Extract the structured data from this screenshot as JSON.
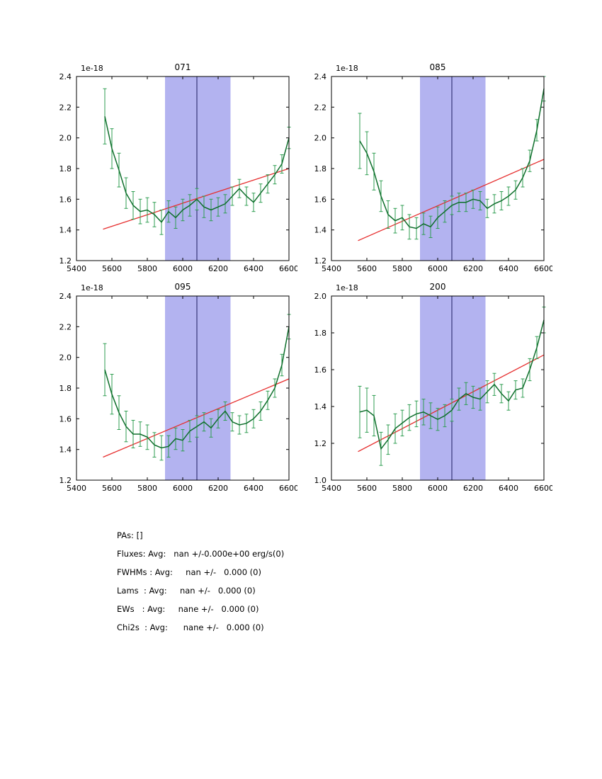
{
  "colors": {
    "band": "#b3b3f0",
    "vline": "#1c1c60",
    "fit": "#e62e2e",
    "line": "#0e6e2b",
    "errorbar": "#2f9e52",
    "axes": "#000000"
  },
  "stats": {
    "lines": [
      "PAs: []",
      "Fluxes: Avg:   nan +/-0.000e+00 erg/s(0)",
      "FWHMs : Avg:     nan +/-   0.000 (0)",
      "Lams  : Avg:     nan +/-   0.000 (0)",
      "EWs   : Avg:     nane +/-   0.000 (0)",
      "Chi2s  : Avg:      nane +/-   0.000 (0)"
    ]
  },
  "chart_data": [
    {
      "type": "line",
      "title": "071",
      "offset_label": "1e-18",
      "xlim": [
        5400,
        6600
      ],
      "ylim": [
        1.2,
        2.4
      ],
      "xticks": [
        5400,
        5600,
        5800,
        6000,
        6200,
        6400,
        6600
      ],
      "yticks": [
        1.2,
        1.4,
        1.6,
        1.8,
        2.0,
        2.2,
        2.4
      ],
      "band": [
        5900,
        6270
      ],
      "vline": 6080,
      "fit_line": {
        "x": [
          5550,
          6600
        ],
        "y": [
          1.405,
          1.8
        ]
      },
      "x": [
        5560,
        5600,
        5640,
        5680,
        5720,
        5760,
        5800,
        5840,
        5880,
        5920,
        5960,
        6000,
        6040,
        6080,
        6120,
        6160,
        6200,
        6240,
        6280,
        6320,
        6360,
        6400,
        6440,
        6480,
        6520,
        6560,
        6600
      ],
      "y": [
        2.14,
        1.93,
        1.79,
        1.64,
        1.56,
        1.52,
        1.53,
        1.5,
        1.45,
        1.52,
        1.48,
        1.53,
        1.56,
        1.6,
        1.55,
        1.53,
        1.55,
        1.57,
        1.62,
        1.67,
        1.62,
        1.58,
        1.64,
        1.7,
        1.76,
        1.83,
        2.0
      ],
      "yerr": [
        0.18,
        0.13,
        0.11,
        0.1,
        0.09,
        0.08,
        0.08,
        0.08,
        0.08,
        0.07,
        0.07,
        0.07,
        0.07,
        0.07,
        0.07,
        0.07,
        0.06,
        0.06,
        0.06,
        0.06,
        0.06,
        0.06,
        0.06,
        0.06,
        0.06,
        0.06,
        0.07
      ]
    },
    {
      "type": "line",
      "title": "085",
      "offset_label": "1e-18",
      "xlim": [
        5400,
        6600
      ],
      "ylim": [
        1.2,
        2.4
      ],
      "xticks": [
        5400,
        5600,
        5800,
        6000,
        6200,
        6400,
        6600
      ],
      "yticks": [
        1.2,
        1.4,
        1.6,
        1.8,
        2.0,
        2.2,
        2.4
      ],
      "band": [
        5900,
        6270
      ],
      "vline": 6080,
      "fit_line": {
        "x": [
          5550,
          6600
        ],
        "y": [
          1.33,
          1.86
        ]
      },
      "x": [
        5560,
        5600,
        5640,
        5680,
        5720,
        5760,
        5800,
        5840,
        5880,
        5920,
        5960,
        6000,
        6040,
        6080,
        6120,
        6160,
        6200,
        6240,
        6280,
        6320,
        6360,
        6400,
        6440,
        6480,
        6520,
        6560,
        6600
      ],
      "y": [
        1.98,
        1.9,
        1.78,
        1.62,
        1.5,
        1.46,
        1.48,
        1.42,
        1.41,
        1.44,
        1.42,
        1.48,
        1.52,
        1.56,
        1.58,
        1.58,
        1.6,
        1.59,
        1.54,
        1.57,
        1.59,
        1.62,
        1.66,
        1.74,
        1.85,
        2.05,
        2.32
      ],
      "yerr": [
        0.18,
        0.14,
        0.12,
        0.1,
        0.09,
        0.08,
        0.08,
        0.08,
        0.07,
        0.07,
        0.07,
        0.07,
        0.07,
        0.06,
        0.06,
        0.06,
        0.06,
        0.06,
        0.06,
        0.06,
        0.06,
        0.06,
        0.06,
        0.06,
        0.07,
        0.07,
        0.08
      ]
    },
    {
      "type": "line",
      "title": "095",
      "offset_label": "1e-18",
      "xlim": [
        5400,
        6600
      ],
      "ylim": [
        1.2,
        2.4
      ],
      "xticks": [
        5400,
        5600,
        5800,
        6000,
        6200,
        6400,
        6600
      ],
      "yticks": [
        1.2,
        1.4,
        1.6,
        1.8,
        2.0,
        2.2,
        2.4
      ],
      "band": [
        5900,
        6270
      ],
      "vline": 6080,
      "fit_line": {
        "x": [
          5550,
          6600
        ],
        "y": [
          1.35,
          1.86
        ]
      },
      "x": [
        5560,
        5600,
        5640,
        5680,
        5720,
        5760,
        5800,
        5840,
        5880,
        5920,
        5960,
        6000,
        6040,
        6080,
        6120,
        6160,
        6200,
        6240,
        6280,
        6320,
        6360,
        6400,
        6440,
        6480,
        6520,
        6560,
        6600
      ],
      "y": [
        1.92,
        1.76,
        1.64,
        1.55,
        1.5,
        1.5,
        1.48,
        1.43,
        1.41,
        1.42,
        1.47,
        1.46,
        1.52,
        1.55,
        1.58,
        1.54,
        1.6,
        1.65,
        1.58,
        1.56,
        1.57,
        1.6,
        1.65,
        1.72,
        1.8,
        1.95,
        2.2
      ],
      "yerr": [
        0.17,
        0.13,
        0.11,
        0.1,
        0.09,
        0.08,
        0.08,
        0.08,
        0.08,
        0.07,
        0.07,
        0.07,
        0.07,
        0.07,
        0.06,
        0.06,
        0.06,
        0.06,
        0.06,
        0.06,
        0.06,
        0.06,
        0.06,
        0.06,
        0.06,
        0.07,
        0.08
      ]
    },
    {
      "type": "line",
      "title": "200",
      "offset_label": "1e-18",
      "xlim": [
        5400,
        6600
      ],
      "ylim": [
        1.0,
        2.0
      ],
      "xticks": [
        5400,
        5600,
        5800,
        6000,
        6200,
        6400,
        6600
      ],
      "yticks": [
        1.0,
        1.2,
        1.4,
        1.6,
        1.8,
        2.0
      ],
      "band": [
        5900,
        6270
      ],
      "vline": 6080,
      "fit_line": {
        "x": [
          5550,
          6600
        ],
        "y": [
          1.155,
          1.68
        ]
      },
      "x": [
        5560,
        5600,
        5640,
        5680,
        5720,
        5760,
        5800,
        5840,
        5880,
        5920,
        5960,
        6000,
        6040,
        6080,
        6120,
        6160,
        6200,
        6240,
        6280,
        6320,
        6360,
        6400,
        6440,
        6480,
        6520,
        6560,
        6600
      ],
      "y": [
        1.37,
        1.38,
        1.35,
        1.17,
        1.22,
        1.28,
        1.31,
        1.34,
        1.36,
        1.37,
        1.35,
        1.33,
        1.35,
        1.38,
        1.44,
        1.47,
        1.45,
        1.44,
        1.48,
        1.52,
        1.47,
        1.43,
        1.49,
        1.5,
        1.6,
        1.72,
        1.87
      ],
      "yerr": [
        0.14,
        0.12,
        0.11,
        0.09,
        0.08,
        0.08,
        0.07,
        0.07,
        0.07,
        0.07,
        0.07,
        0.06,
        0.06,
        0.06,
        0.06,
        0.06,
        0.06,
        0.06,
        0.06,
        0.06,
        0.05,
        0.05,
        0.05,
        0.05,
        0.06,
        0.06,
        0.07
      ]
    }
  ]
}
